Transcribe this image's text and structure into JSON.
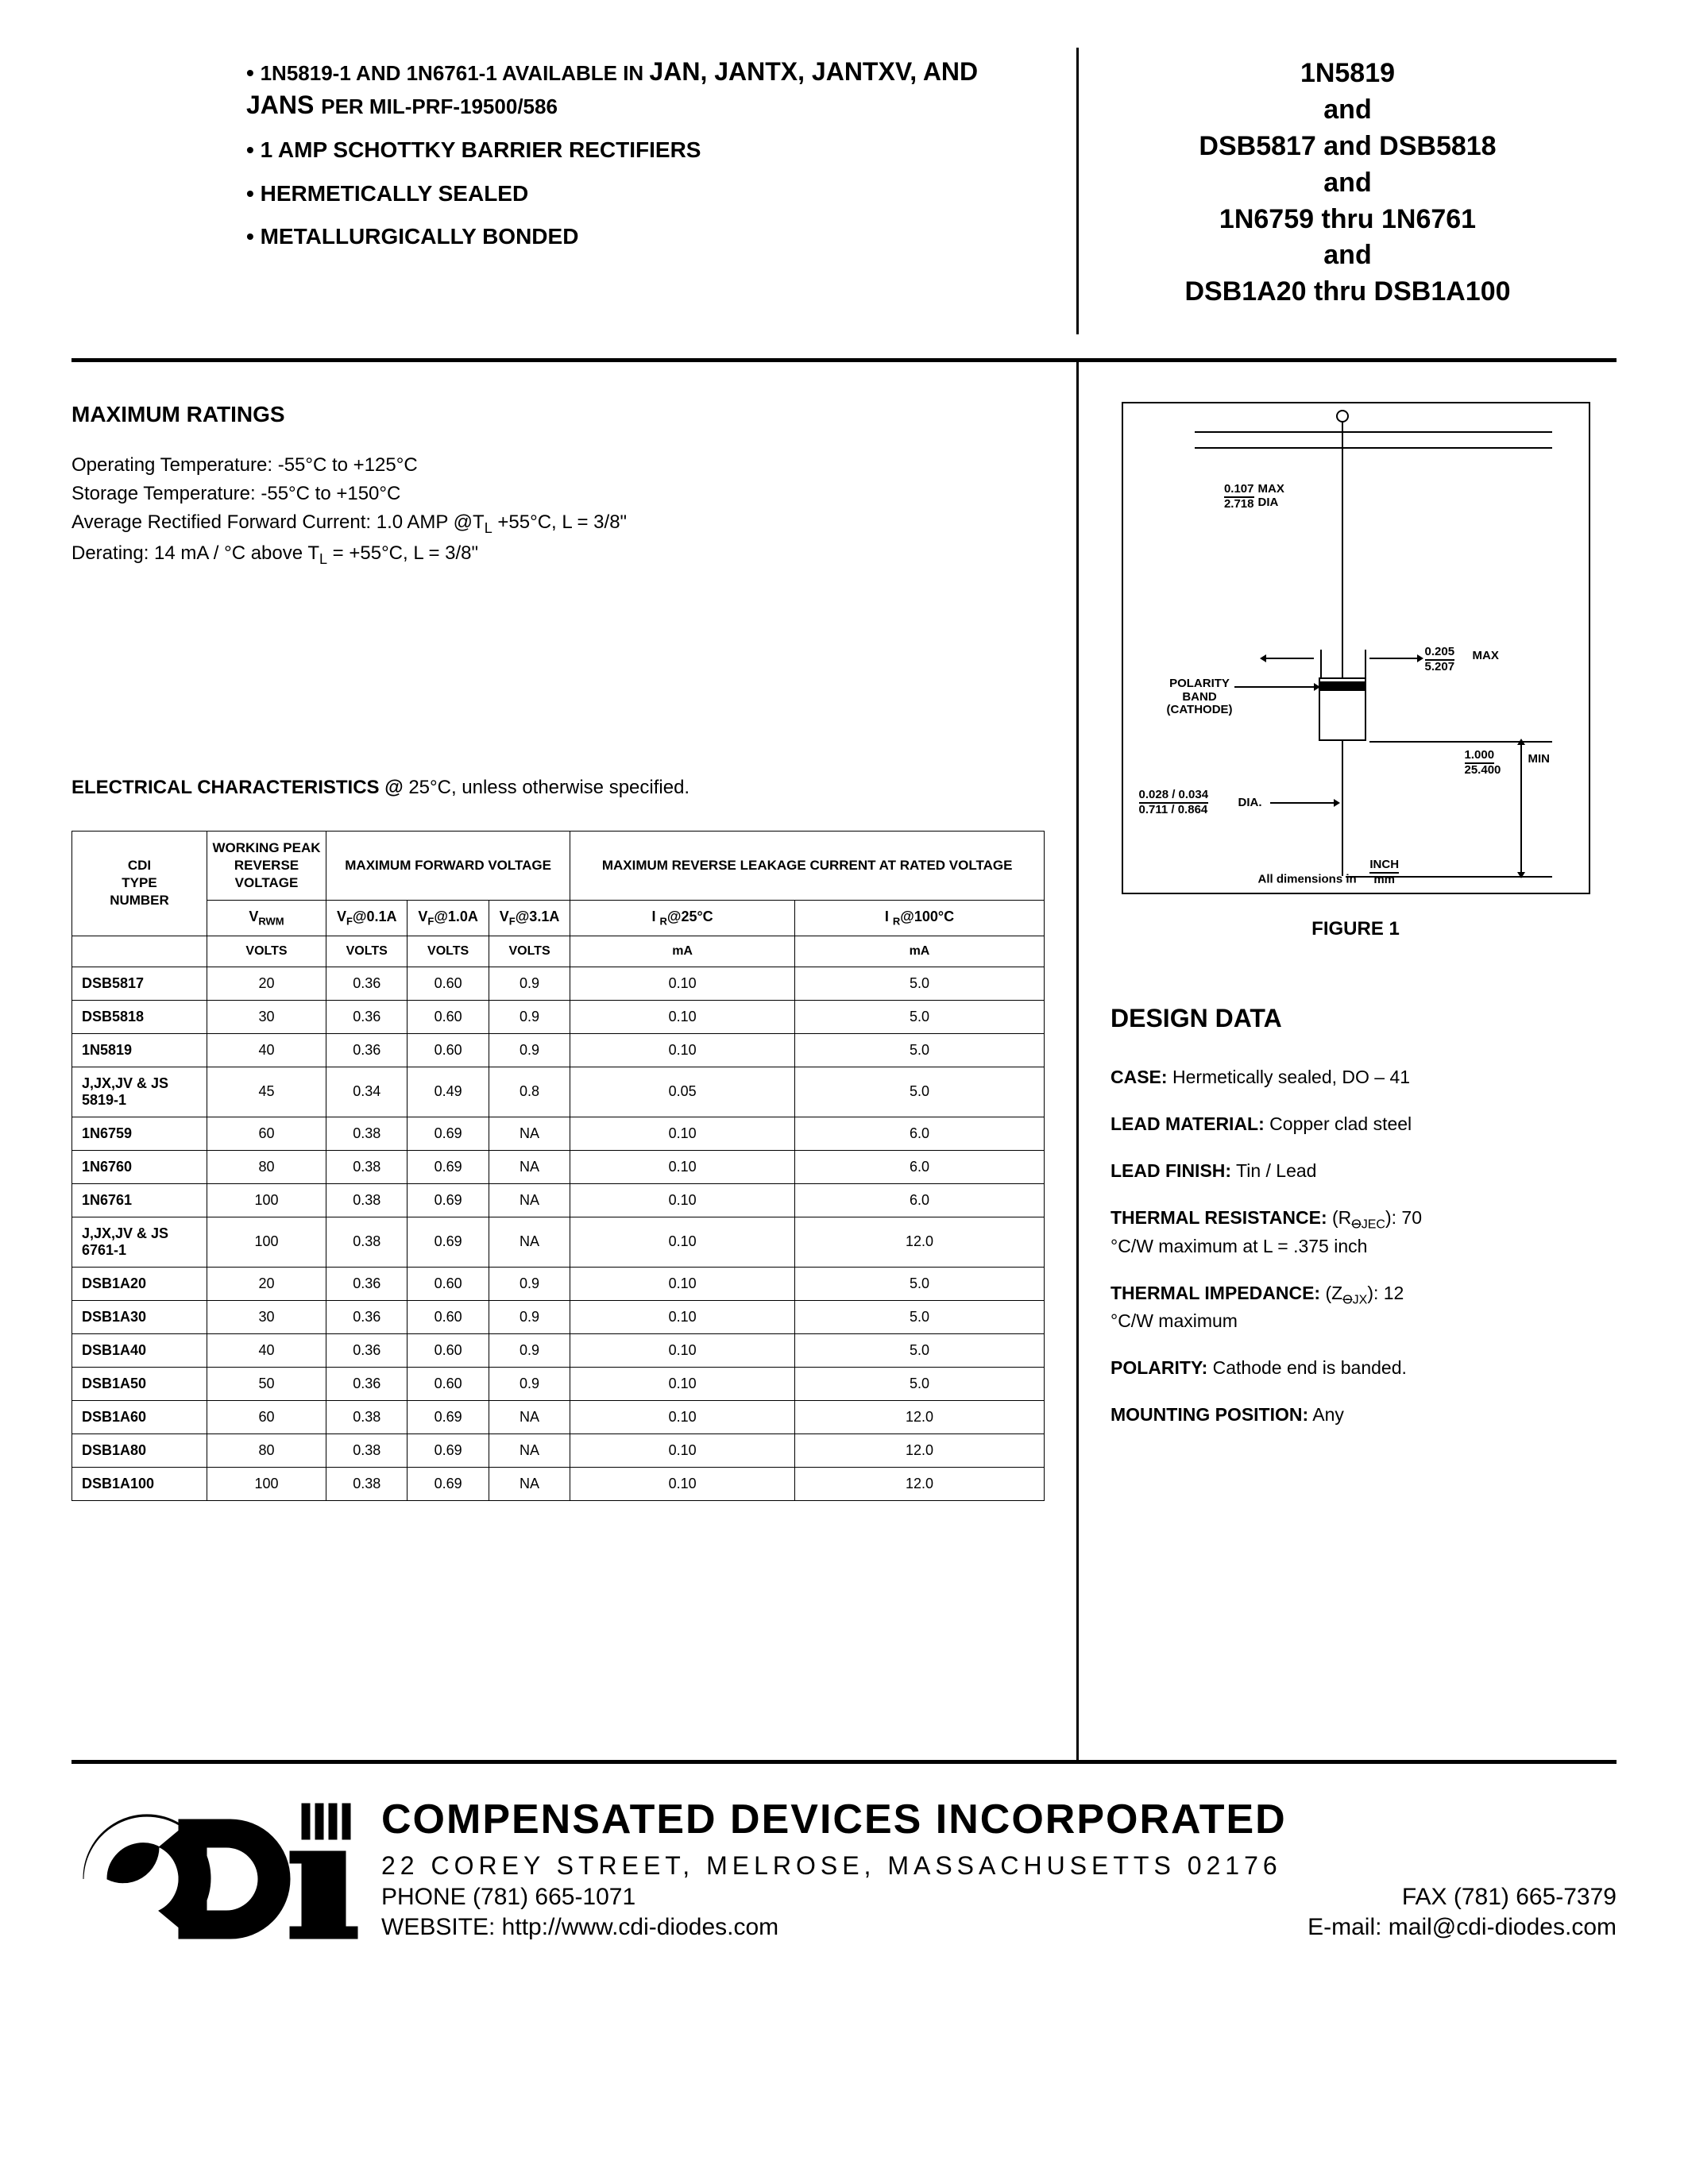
{
  "features": {
    "line1a": "1N5819-1 AND 1N6761-1 AVAILABLE IN ",
    "line1b": "JAN, JANTX, JANTXV, AND JANS ",
    "line1c": "PER MIL-PRF-19500/586",
    "line2": "1 AMP SCHOTTKY BARRIER RECTIFIERS",
    "line3": "HERMETICALLY SEALED",
    "line4": "METALLURGICALLY BONDED"
  },
  "partnumbers": {
    "l1": "1N5819",
    "l2": "and",
    "l3": "DSB5817 and DSB5818",
    "l4": "and",
    "l5": "1N6759 thru 1N6761",
    "l6": "and",
    "l7": "DSB1A20 thru DSB1A100"
  },
  "maxratings": {
    "heading": "MAXIMUM RATINGS",
    "r1": "Operating Temperature:  -55°C to +125°C",
    "r2": "Storage Temperature:  -55°C to +150°C",
    "r3a": "Average Rectified Forward Current:  1.0 AMP @T",
    "r3b": " +55°C, L = 3/8\"",
    "r4a": "Derating: 14 mA / °C above  T",
    "r4b": " = +55°C, L =  3/8\""
  },
  "elchar": {
    "label": "ELECTRICAL CHARACTERISTICS @ ",
    "cond": "25°C, unless otherwise specified."
  },
  "table": {
    "h_type": "CDI\nTYPE\nNUMBER",
    "h_vrwm_group": "WORKING PEAK REVERSE VOLTAGE",
    "h_vf_group": "MAXIMUM FORWARD VOLTAGE",
    "h_ir_group": "MAXIMUM REVERSE LEAKAGE CURRENT AT RATED VOLTAGE",
    "h_vrwm": "V",
    "h_vrwm_sub": "RWM",
    "h_vf01": "V",
    "h_vf01_sub": "F",
    "h_vf01_at": "@0.1A",
    "h_vf10": "V",
    "h_vf10_sub": "F",
    "h_vf10_at": "@1.0A",
    "h_vf31": "V",
    "h_vf31_sub": "F",
    "h_vf31_at": "@3.1A",
    "h_ir25": "I ",
    "h_ir25_sub": "R",
    "h_ir25_at": "@25°C",
    "h_ir100": "I ",
    "h_ir100_sub": "R",
    "h_ir100_at": "@100°C",
    "u_volts": "VOLTS",
    "u_ma": "mA",
    "rows": [
      {
        "n": "DSB5817",
        "v": "20",
        "a": "0.36",
        "b": "0.60",
        "c": "0.9",
        "d": "0.10",
        "e": "5.0"
      },
      {
        "n": "DSB5818",
        "v": "30",
        "a": "0.36",
        "b": "0.60",
        "c": "0.9",
        "d": "0.10",
        "e": "5.0"
      },
      {
        "n": "1N5819",
        "v": "40",
        "a": "0.36",
        "b": "0.60",
        "c": "0.9",
        "d": "0.10",
        "e": "5.0"
      },
      {
        "n": "J,JX,JV & JS 5819-1",
        "v": "45",
        "a": "0.34",
        "b": "0.49",
        "c": "0.8",
        "d": "0.05",
        "e": "5.0"
      },
      {
        "n": "1N6759",
        "v": "60",
        "a": "0.38",
        "b": "0.69",
        "c": "NA",
        "d": "0.10",
        "e": "6.0"
      },
      {
        "n": "1N6760",
        "v": "80",
        "a": "0.38",
        "b": "0.69",
        "c": "NA",
        "d": "0.10",
        "e": "6.0"
      },
      {
        "n": "1N6761",
        "v": "100",
        "a": "0.38",
        "b": "0.69",
        "c": "NA",
        "d": "0.10",
        "e": "6.0"
      },
      {
        "n": "J,JX,JV & JS 6761-1",
        "v": "100",
        "a": "0.38",
        "b": "0.69",
        "c": "NA",
        "d": "0.10",
        "e": "12.0"
      },
      {
        "n": "DSB1A20",
        "v": "20",
        "a": "0.36",
        "b": "0.60",
        "c": "0.9",
        "d": "0.10",
        "e": "5.0"
      },
      {
        "n": "DSB1A30",
        "v": "30",
        "a": "0.36",
        "b": "0.60",
        "c": "0.9",
        "d": "0.10",
        "e": "5.0"
      },
      {
        "n": "DSB1A40",
        "v": "40",
        "a": "0.36",
        "b": "0.60",
        "c": "0.9",
        "d": "0.10",
        "e": "5.0"
      },
      {
        "n": "DSB1A50",
        "v": "50",
        "a": "0.36",
        "b": "0.60",
        "c": "0.9",
        "d": "0.10",
        "e": "5.0"
      },
      {
        "n": "DSB1A60",
        "v": "60",
        "a": "0.38",
        "b": "0.69",
        "c": "NA",
        "d": "0.10",
        "e": "12.0"
      },
      {
        "n": "DSB1A80",
        "v": "80",
        "a": "0.38",
        "b": "0.69",
        "c": "NA",
        "d": "0.10",
        "e": "12.0"
      },
      {
        "n": "DSB1A100",
        "v": "100",
        "a": "0.38",
        "b": "0.69",
        "c": "NA",
        "d": "0.10",
        "e": "12.0"
      }
    ]
  },
  "figure": {
    "caption": "FIGURE 1",
    "dim_dia_top": "0.107",
    "dim_dia_bot": "2.718",
    "dim_dia_lbl": "MAX\nDIA",
    "dim_body_top": "0.205",
    "dim_body_bot": "5.207",
    "dim_body_lbl": "MAX",
    "polarity": "POLARITY\nBAND\n(CATHODE)",
    "dim_len_top": "1.000",
    "dim_len_bot": "25.400",
    "dim_len_lbl": "MIN",
    "dim_lead_top": "0.028 / 0.034",
    "dim_lead_bot": "0.711 / 0.864",
    "dim_lead_lbl": "DIA.",
    "alldim": "All dimensions in",
    "inch": "INCH",
    "mm": "mm"
  },
  "design": {
    "heading": "DESIGN DATA",
    "case_l": "CASE:",
    "case_v": "  Hermetically sealed, DO – 41",
    "leadmat_l": "LEAD MATERIAL:",
    "leadmat_v": " Copper clad steel",
    "leadfin_l": "LEAD FINISH:",
    "leadfin_v": " Tin / Lead",
    "thres_l": "THERMAL RESISTANCE:",
    "thres_sym1": " (R",
    "thres_sym2": "Θ",
    "thres_sym3": "JEC",
    "thres_sym4": "): 70",
    "thres_v": "°C/W maximum at L = .375 inch",
    "thimp_l": "THERMAL IMPEDANCE:",
    "thimp_sym1": " (Z",
    "thimp_sym2": "Θ",
    "thimp_sym3": "JX",
    "thimp_sym4": "): 12",
    "thimp_v": "°C/W maximum",
    "pol_l": "POLARITY:",
    "pol_v": "    Cathode end is banded.",
    "mount_l": "MOUNTING POSITION:",
    "mount_v": " Any"
  },
  "footer": {
    "company": "COMPENSATED DEVICES INCORPORATED",
    "addr": "22 COREY STREET, MELROSE, MASSACHUSETTS 02176",
    "phone": "PHONE (781) 665-1071",
    "fax": "FAX (781) 665-7379",
    "web": "WEBSITE:  http://www.cdi-diodes.com",
    "email": "E-mail: mail@cdi-diodes.com"
  }
}
